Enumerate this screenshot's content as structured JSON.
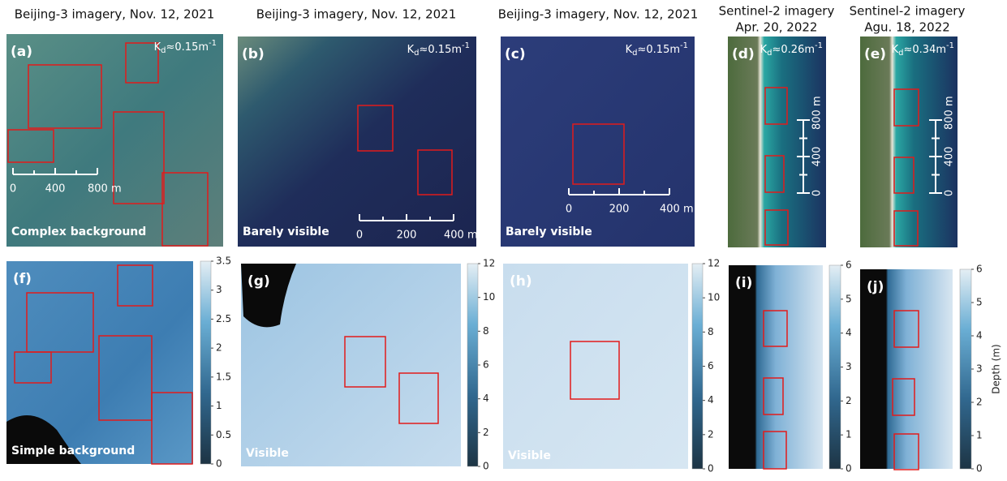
{
  "headers": [
    {
      "lines": [
        "Beijing-3 imagery, Nov. 12, 2021"
      ]
    },
    {
      "lines": [
        "Beijing-3 imagery, Nov. 12, 2021"
      ]
    },
    {
      "lines": [
        "Beijing-3 imagery, Nov. 12, 2021"
      ]
    },
    {
      "lines": [
        "Sentinel-2 imagery",
        "Apr. 20, 2022"
      ]
    },
    {
      "lines": [
        "Sentinel-2 imagery",
        "Agu. 18, 2022"
      ]
    }
  ],
  "top_panels": [
    {
      "label": "(a)",
      "kd": {
        "base": "K",
        "sub": "d",
        "rest": "≈0.15m",
        "sup": "-1"
      },
      "scale_bar": [
        "0",
        "400",
        "800 m"
      ],
      "caption": "Complex background"
    },
    {
      "label": "(b)",
      "kd": {
        "base": "K",
        "sub": "d",
        "rest": "≈0.15m",
        "sup": "-1"
      },
      "scale_bar": [
        "0",
        "200",
        "400 m"
      ],
      "caption": "Barely visible"
    },
    {
      "label": "(c)",
      "kd": {
        "base": "K",
        "sub": "d",
        "rest": "≈0.15m",
        "sup": "-1"
      },
      "scale_bar": [
        "0",
        "200",
        "400 m"
      ],
      "caption": "Barely visible"
    },
    {
      "label": "(d)",
      "kd": {
        "base": "K",
        "sub": "d",
        "rest": "≈0.26m",
        "sup": "-1"
      },
      "scale_bar": [
        "0",
        "400",
        "800 m"
      ]
    },
    {
      "label": "(e)",
      "kd": {
        "base": "K",
        "sub": "d",
        "rest": "≈0.34m",
        "sup": "-1"
      },
      "scale_bar": [
        "0",
        "400",
        "800 m"
      ]
    }
  ],
  "bottom_panels": [
    {
      "label": "(f)",
      "caption": "Simple background",
      "colorbar_ticks": [
        0,
        0.5,
        1,
        1.5,
        2,
        2.5,
        3,
        3.5
      ]
    },
    {
      "label": "(g)",
      "caption": "Visible",
      "colorbar_ticks": [
        0,
        2,
        4,
        6,
        8,
        10,
        12
      ]
    },
    {
      "label": "(h)",
      "caption": "Visible",
      "colorbar_ticks": [
        0,
        2,
        4,
        6,
        8,
        10,
        12
      ]
    },
    {
      "label": "(i)",
      "colorbar_ticks": [
        0,
        1,
        2,
        3,
        4,
        5,
        6
      ]
    },
    {
      "label": "(j)",
      "colorbar_ticks": [
        0,
        1,
        2,
        3,
        4,
        5,
        6
      ]
    }
  ],
  "colorbar_label": "Depth (m)"
}
